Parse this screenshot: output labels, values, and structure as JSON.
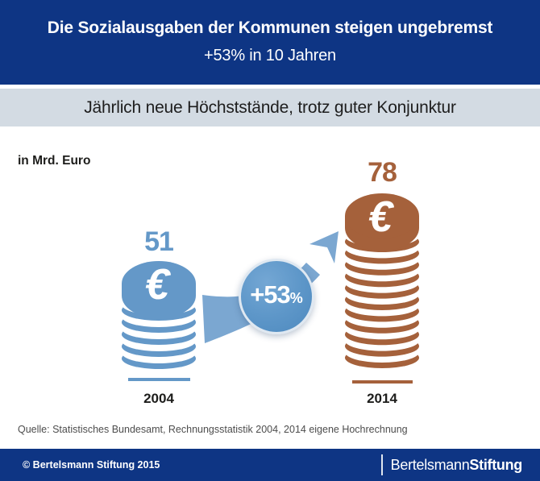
{
  "header": {
    "title": "Die Sozialausgaben der Kommunen steigen ungebremst",
    "subtitle": "+53% in 10 Jahren"
  },
  "banner": {
    "text": "Jährlich neue Höchststände, trotz guter Konjunktur"
  },
  "chart": {
    "unit_label": "in Mrd. Euro",
    "coin_symbol": "€",
    "badge_value": "+53",
    "badge_unit": "%"
  },
  "chart_data": {
    "type": "bar",
    "title": "Die Sozialausgaben der Kommunen steigen ungebremst",
    "subtitle": "+53% in 10 Jahren",
    "ylabel": "in Mrd. Euro",
    "categories": [
      "2004",
      "2014"
    ],
    "values": [
      51,
      78
    ],
    "change_annotation": "+53%",
    "stacks": [
      {
        "year": "2004",
        "value": 51,
        "coin_color": "#6498c8",
        "rings": 5
      },
      {
        "year": "2014",
        "value": 78,
        "coin_color": "#a5613b",
        "rings": 11
      }
    ]
  },
  "colors": {
    "header_bg": "#0e3584",
    "band_bg": "#d3dbe3",
    "blue": "#6498c8",
    "brown": "#a5613b",
    "arrow": "#7ba7d1",
    "badge": "#5e97c9"
  },
  "source": {
    "text": "Quelle: Statistisches Bundesamt, Rechnungsstatistik 2004, 2014 eigene Hochrechnung"
  },
  "footer": {
    "copyright": "© Bertelsmann Stiftung 2015",
    "brand_regular": "Bertelsmann",
    "brand_bold": "Stiftung"
  }
}
